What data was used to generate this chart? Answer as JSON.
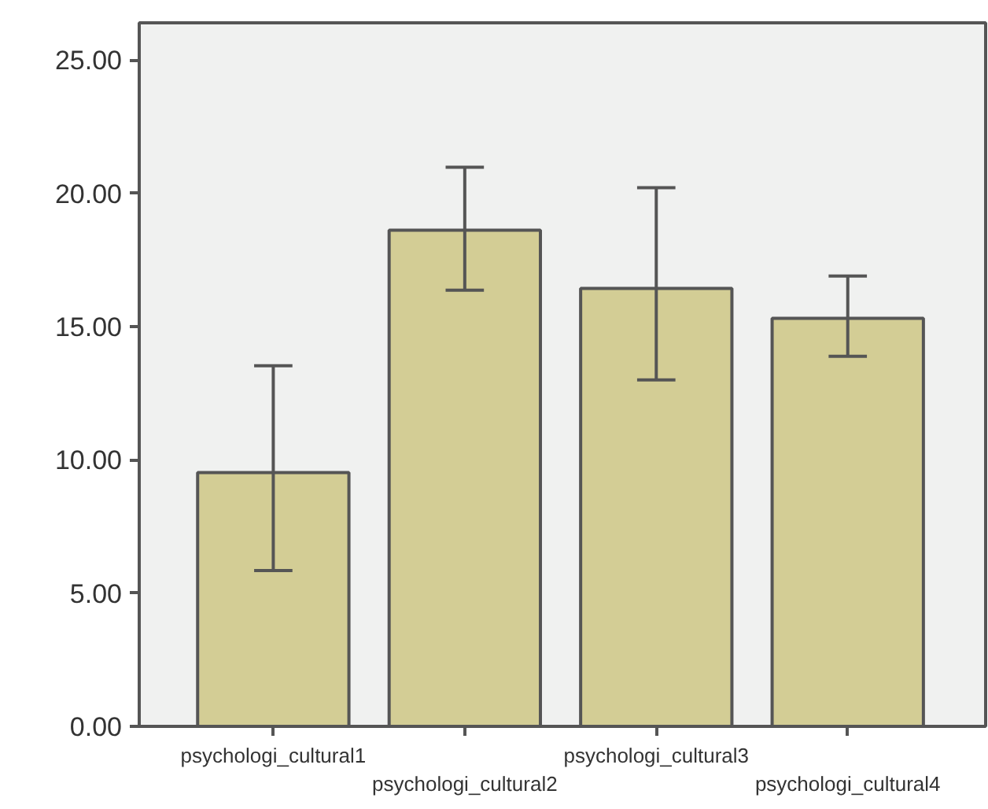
{
  "chart_data": {
    "type": "bar",
    "categories": [
      "psychologi_cultural1",
      "psychologi_cultural2",
      "psychologi_cultural3",
      "psychologi_cultural4"
    ],
    "values": [
      9.52,
      18.62,
      16.43,
      15.31
    ],
    "errors": [
      [
        5.85,
        13.53
      ],
      [
        16.37,
        20.98
      ],
      [
        13.0,
        20.21
      ],
      [
        13.89,
        16.9
      ]
    ],
    "color": "#d3cd95",
    "ylim": [
      0,
      26.4
    ],
    "yticks": [
      {
        "value": 0,
        "label": "0.00"
      },
      {
        "value": 5,
        "label": "5.00"
      },
      {
        "value": 10,
        "label": "10.00"
      },
      {
        "value": 15,
        "label": "15.00"
      },
      {
        "value": 20,
        "label": "20.00"
      },
      {
        "value": 25,
        "label": "25.00"
      }
    ],
    "grid": false
  }
}
